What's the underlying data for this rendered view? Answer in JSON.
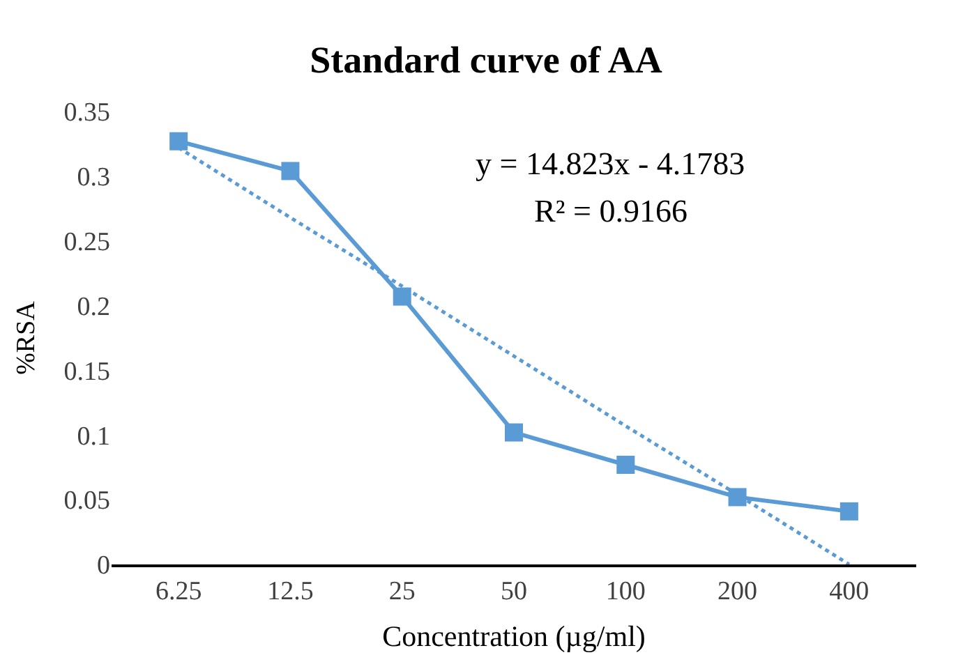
{
  "chart_data": {
    "type": "line",
    "title": "Standard curve of AA",
    "xlabel": "Concentration (µg/ml)",
    "ylabel": "%RSA",
    "categories": [
      "6.25",
      "12.5",
      "25",
      "50",
      "100",
      "200",
      "400"
    ],
    "series": [
      {
        "color": "#5b9bd5",
        "marker": "square",
        "line_style": "solid",
        "values": [
          0.327,
          0.304,
          0.207,
          0.102,
          0.077,
          0.052,
          0.041
        ]
      },
      {
        "color": "#5b9bd5",
        "marker": "none",
        "line_style": "dotted",
        "values": [
          0.322,
          0.268,
          0.215,
          0.161,
          0.107,
          0.054,
          0.0
        ]
      }
    ],
    "ylim": [
      0,
      0.35
    ],
    "yticks": [
      {
        "value": 0,
        "label": "0"
      },
      0.05,
      0.1,
      0.15,
      0.2,
      0.25,
      0.3,
      0.35
    ],
    "legend": false,
    "annotations": [
      "y = 14.823x - 4.1783",
      "R² = 0.9166"
    ]
  }
}
